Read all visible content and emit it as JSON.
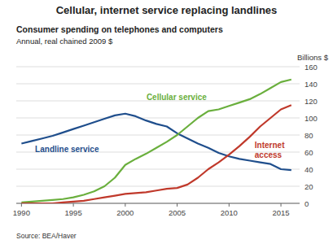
{
  "chart_data": {
    "type": "line",
    "title": "Cellular, internet service replacing landlines",
    "subtitle": [
      "Consumer spending on telephones and computers",
      "Annual, real chained 2009 $"
    ],
    "y_label": "Billions $",
    "source": "Source: BEA/Haver",
    "x": [
      1990,
      1991,
      1992,
      1993,
      1994,
      1995,
      1996,
      1997,
      1998,
      1999,
      2000,
      2001,
      2002,
      2003,
      2004,
      2005,
      2006,
      2007,
      2008,
      2009,
      2010,
      2011,
      2012,
      2013,
      2014,
      2015,
      2016
    ],
    "series": [
      {
        "name": "Landline service",
        "color": "#1F4E8C",
        "values": [
          70,
          73,
          76,
          79,
          83,
          87,
          91,
          95,
          99,
          103,
          105,
          102,
          97,
          93,
          90,
          82,
          76,
          70,
          65,
          59,
          55,
          52,
          50,
          48,
          46,
          40,
          39
        ]
      },
      {
        "name": "Cellular service",
        "color": "#6AAF3D",
        "values": [
          1,
          2,
          3,
          4,
          5,
          7,
          10,
          14,
          20,
          30,
          45,
          52,
          58,
          65,
          72,
          80,
          90,
          100,
          108,
          110,
          114,
          118,
          122,
          128,
          135,
          142,
          145
        ]
      },
      {
        "name": "Internet\naccess",
        "color": "#C0392B",
        "values": [
          0,
          0,
          0,
          0,
          1,
          2,
          3,
          5,
          7,
          9,
          11,
          12,
          13,
          15,
          17,
          18,
          22,
          30,
          40,
          48,
          57,
          67,
          78,
          90,
          100,
          110,
          115
        ]
      }
    ],
    "xlim": [
      1989.5,
      2016.8
    ],
    "xticks": [
      1990,
      1995,
      2000,
      2005,
      2010,
      2015
    ],
    "ylim": [
      0,
      160
    ],
    "yticks": [
      0,
      20,
      40,
      60,
      80,
      100,
      120,
      140,
      160
    ],
    "grid": true
  }
}
